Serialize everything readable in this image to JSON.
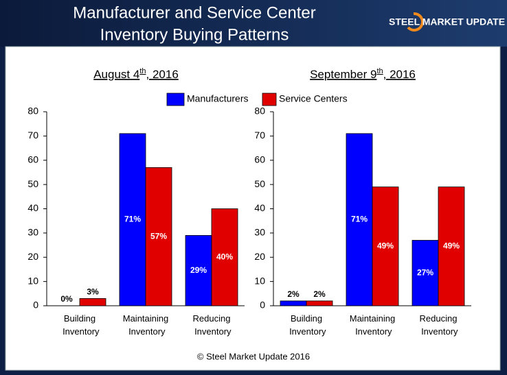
{
  "header": {
    "title": [
      "Manufacturer and Service Center",
      "Inventory Buying Patterns"
    ],
    "logo": "STEEL MARKET UPDATE"
  },
  "chart_data": [
    {
      "type": "bar",
      "title": "August 4th, 2016",
      "categories": [
        "Building Inventory",
        "Maintaining Inventory",
        "Reducing Inventory"
      ],
      "series": [
        {
          "name": "Manufacturers",
          "color": "#0000ff",
          "values": [
            0,
            71,
            29
          ],
          "value_labels": [
            "0%",
            "71%",
            "29%"
          ]
        },
        {
          "name": "Service Centers",
          "color": "#e00000",
          "values": [
            3,
            57,
            40
          ],
          "value_labels": [
            "3%",
            "57%",
            "40%"
          ]
        }
      ],
      "ylim": [
        0,
        80
      ],
      "yticks": [
        0,
        10,
        20,
        30,
        40,
        50,
        60,
        70,
        80
      ]
    },
    {
      "type": "bar",
      "title": "September 9th, 2016",
      "categories": [
        "Building Inventory",
        "Maintaining Inventory",
        "Reducing Inventory"
      ],
      "series": [
        {
          "color": "#0000ff",
          "values": [
            2,
            71,
            27
          ],
          "value_labels": [
            "2%",
            "71%",
            "27%"
          ]
        },
        {
          "color": "#e00000",
          "values": [
            2,
            49,
            49
          ],
          "value_labels": [
            "2%",
            "49%",
            "49%"
          ]
        }
      ],
      "ylim": [
        0,
        80
      ],
      "yticks": [
        0,
        10,
        20,
        30,
        40,
        50,
        60,
        70,
        80
      ]
    }
  ],
  "footer": "© Steel Market Update 2016"
}
